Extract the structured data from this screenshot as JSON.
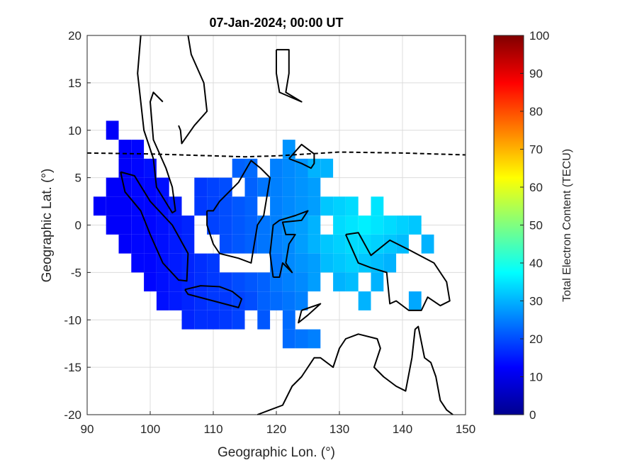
{
  "chart_data": {
    "type": "heatmap",
    "title": "07-Jan-2024; 00:00 UT",
    "xlabel": "Geographic Lon. (°)",
    "ylabel": "Geographic Lat. (°)",
    "xlim": [
      90,
      150
    ],
    "ylim": [
      -20,
      20
    ],
    "xticks": [
      "90",
      "100",
      "110",
      "120",
      "130",
      "140",
      "150"
    ],
    "yticks": [
      "20",
      "15",
      "10",
      "5",
      "0",
      "-5",
      "-10",
      "-15",
      "-20"
    ],
    "grid": true,
    "colorbar": {
      "label": "Total Electron Content (TECU)",
      "range": [
        0,
        100
      ],
      "colormap": "jet",
      "ticks": [
        "100",
        "90",
        "80",
        "70",
        "60",
        "50",
        "40",
        "30",
        "20",
        "10",
        "0"
      ]
    },
    "magnetic_equator": [
      [
        90,
        7.6
      ],
      [
        100,
        7.5
      ],
      [
        110,
        7.3
      ],
      [
        115,
        7.2
      ],
      [
        120,
        7.3
      ],
      [
        125,
        7.5
      ],
      [
        130,
        7.7
      ],
      [
        140,
        7.6
      ],
      [
        150,
        7.4
      ]
    ],
    "cell_size_deg": [
      2,
      2
    ],
    "cells_lon_lat_tec": [
      [
        94,
        10,
        12
      ],
      [
        96,
        8,
        12
      ],
      [
        98,
        8,
        13
      ],
      [
        96,
        6,
        12
      ],
      [
        98,
        6,
        13
      ],
      [
        100,
        6,
        14
      ],
      [
        94,
        4,
        12
      ],
      [
        96,
        4,
        12
      ],
      [
        98,
        4,
        13
      ],
      [
        100,
        4,
        13
      ],
      [
        102,
        4,
        14
      ],
      [
        92,
        2,
        12
      ],
      [
        94,
        2,
        12
      ],
      [
        96,
        2,
        12
      ],
      [
        98,
        2,
        13
      ],
      [
        100,
        2,
        13
      ],
      [
        102,
        2,
        14
      ],
      [
        104,
        2,
        15
      ],
      [
        94,
        0,
        12
      ],
      [
        96,
        0,
        12
      ],
      [
        98,
        0,
        13
      ],
      [
        100,
        0,
        13
      ],
      [
        102,
        0,
        14
      ],
      [
        104,
        0,
        15
      ],
      [
        106,
        0,
        16
      ],
      [
        96,
        -2,
        12
      ],
      [
        98,
        -2,
        13
      ],
      [
        100,
        -2,
        13
      ],
      [
        102,
        -2,
        14
      ],
      [
        104,
        -2,
        15
      ],
      [
        106,
        -2,
        16
      ],
      [
        98,
        -4,
        13
      ],
      [
        100,
        -4,
        13
      ],
      [
        102,
        -4,
        14
      ],
      [
        104,
        -4,
        15
      ],
      [
        106,
        -4,
        16
      ],
      [
        108,
        -4,
        17
      ],
      [
        110,
        -4,
        18
      ],
      [
        100,
        -6,
        13
      ],
      [
        102,
        -6,
        14
      ],
      [
        104,
        -6,
        15
      ],
      [
        106,
        -6,
        16
      ],
      [
        108,
        -6,
        17
      ],
      [
        110,
        -6,
        18
      ],
      [
        112,
        -6,
        19
      ],
      [
        114,
        -6,
        20
      ],
      [
        116,
        -6,
        21
      ],
      [
        102,
        -8,
        14
      ],
      [
        104,
        -8,
        15
      ],
      [
        106,
        -8,
        16
      ],
      [
        108,
        -8,
        17
      ],
      [
        110,
        -8,
        18
      ],
      [
        112,
        -8,
        18
      ],
      [
        114,
        -8,
        19
      ],
      [
        116,
        -8,
        20
      ],
      [
        118,
        -8,
        22
      ],
      [
        120,
        -8,
        23
      ],
      [
        122,
        -8,
        24
      ],
      [
        124,
        -8,
        25
      ],
      [
        106,
        -10,
        16
      ],
      [
        108,
        -10,
        17
      ],
      [
        110,
        -10,
        17
      ],
      [
        112,
        -10,
        18
      ],
      [
        114,
        -10,
        19
      ],
      [
        118,
        -10,
        21
      ],
      [
        122,
        -10,
        23
      ],
      [
        108,
        4,
        18
      ],
      [
        110,
        4,
        19
      ],
      [
        112,
        4,
        20
      ],
      [
        108,
        2,
        18
      ],
      [
        110,
        2,
        19
      ],
      [
        112,
        2,
        20
      ],
      [
        114,
        2,
        21
      ],
      [
        116,
        2,
        22
      ],
      [
        110,
        0,
        19
      ],
      [
        112,
        0,
        20
      ],
      [
        114,
        0,
        21
      ],
      [
        116,
        0,
        22
      ],
      [
        118,
        0,
        24
      ],
      [
        112,
        -2,
        20
      ],
      [
        114,
        -2,
        21
      ],
      [
        116,
        -2,
        22
      ],
      [
        118,
        -2,
        24
      ],
      [
        114,
        6,
        22
      ],
      [
        116,
        6,
        23
      ],
      [
        116,
        4,
        22
      ],
      [
        118,
        4,
        24
      ],
      [
        120,
        6,
        25
      ],
      [
        122,
        6,
        26
      ],
      [
        124,
        6,
        27
      ],
      [
        120,
        4,
        25
      ],
      [
        122,
        4,
        26
      ],
      [
        124,
        4,
        27
      ],
      [
        126,
        4,
        28
      ],
      [
        120,
        2,
        25
      ],
      [
        122,
        2,
        26
      ],
      [
        124,
        2,
        27
      ],
      [
        126,
        2,
        28
      ],
      [
        120,
        0,
        25
      ],
      [
        122,
        0,
        27
      ],
      [
        124,
        0,
        28
      ],
      [
        126,
        0,
        30
      ],
      [
        120,
        -2,
        25
      ],
      [
        122,
        -2,
        26
      ],
      [
        124,
        -2,
        28
      ],
      [
        126,
        -2,
        30
      ],
      [
        120,
        -4,
        24
      ],
      [
        122,
        -4,
        26
      ],
      [
        124,
        -4,
        27
      ],
      [
        126,
        -4,
        28
      ],
      [
        118,
        -6,
        22
      ],
      [
        120,
        -6,
        24
      ],
      [
        122,
        -6,
        25
      ],
      [
        124,
        -6,
        26
      ],
      [
        126,
        -6,
        28
      ],
      [
        126,
        6,
        30
      ],
      [
        122,
        8,
        27
      ],
      [
        128,
        6,
        30
      ],
      [
        128,
        2,
        32
      ],
      [
        130,
        0,
        34
      ],
      [
        132,
        0,
        35
      ],
      [
        134,
        0,
        36
      ],
      [
        136,
        0,
        35
      ],
      [
        138,
        0,
        34
      ],
      [
        140,
        0,
        33
      ],
      [
        142,
        0,
        32
      ],
      [
        128,
        -2,
        32
      ],
      [
        130,
        -2,
        33
      ],
      [
        132,
        -2,
        34
      ],
      [
        134,
        -2,
        34
      ],
      [
        136,
        -2,
        33
      ],
      [
        138,
        -2,
        32
      ],
      [
        140,
        -2,
        31
      ],
      [
        144,
        -2,
        30
      ],
      [
        128,
        -4,
        31
      ],
      [
        130,
        -4,
        32
      ],
      [
        132,
        -4,
        33
      ],
      [
        134,
        -4,
        32
      ],
      [
        136,
        -4,
        31
      ],
      [
        138,
        -4,
        30
      ],
      [
        130,
        -6,
        30
      ],
      [
        132,
        -6,
        31
      ],
      [
        136,
        -6,
        30
      ],
      [
        134,
        -8,
        30
      ],
      [
        142,
        -8,
        29
      ],
      [
        130,
        2,
        33
      ],
      [
        132,
        2,
        34
      ],
      [
        136,
        2,
        35
      ],
      [
        122,
        -12,
        23
      ],
      [
        124,
        -12,
        24
      ],
      [
        126,
        -12,
        25
      ]
    ]
  }
}
